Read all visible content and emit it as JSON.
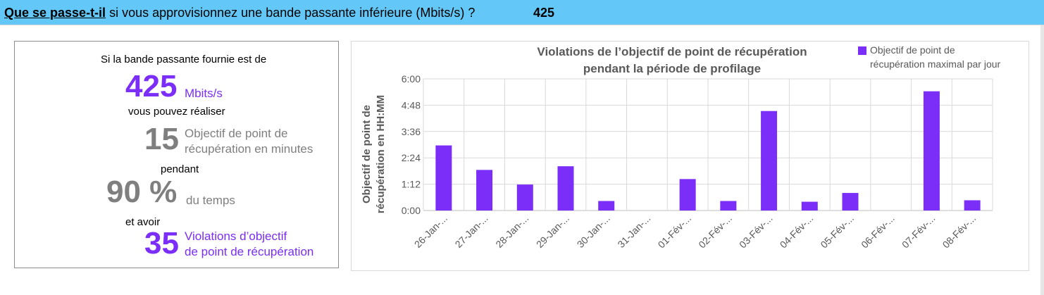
{
  "header": {
    "question_bold": "Que se passe-t-il",
    "question_rest": " si vous approvisionnez une bande passante inférieure (Mbits/s) ?",
    "value": "425"
  },
  "summary": {
    "line1": "Si la bande passante fournie est de",
    "bandwidth": "425",
    "bandwidth_unit": "Mbits/s",
    "line2": "vous pouvez réaliser",
    "rpo_value": "15",
    "rpo_label_1": "Objectif de point de",
    "rpo_label_2": "récupération en minutes",
    "line3": "pendant",
    "percent_value": "90 %",
    "percent_label": "du temps",
    "line4": "et avoir",
    "violations_value": "35",
    "violations_label_1": "Violations d’objectif",
    "violations_label_2": "de point de récupération"
  },
  "chart_data": {
    "type": "bar",
    "title": "Violations de l’objectif de point de récupération pendant la période de profilage",
    "title_lines": [
      "Violations de l’objectif de point de récupération",
      "pendant la période de profilage"
    ],
    "ylabel": "Objectif de point de récupération en HH:MM",
    "ylabel_lines": [
      "Objectif de point de",
      "récupération en HH:MM"
    ],
    "xlabel": "",
    "legend": {
      "position": "top-right",
      "label": "Objectif de point de récupération maximal par jour",
      "label_lines": [
        "Objectif de point de",
        "récupération maximal par jour"
      ]
    },
    "ylim_minutes": [
      0,
      360
    ],
    "y_ticks": [
      {
        "label": "0:00",
        "minutes": 0
      },
      {
        "label": "1:12",
        "minutes": 72
      },
      {
        "label": "2:24",
        "minutes": 144
      },
      {
        "label": "3:36",
        "minutes": 216
      },
      {
        "label": "4:48",
        "minutes": 288
      },
      {
        "label": "6:00",
        "minutes": 360
      }
    ],
    "grid": true,
    "categories": [
      "26-Jan-...",
      "27-Jan-...",
      "28-Jan-...",
      "29-Jan-...",
      "30-Jan-...",
      "31-Jan-...",
      "01-Fév-...",
      "02-Fév-...",
      "03-Fév-...",
      "04-Fév-...",
      "05-Fév-...",
      "06-Fév-...",
      "07-Fév-...",
      "08-Fév-..."
    ],
    "series": [
      {
        "name": "Objectif de point de récupération maximal par jour",
        "values_minutes": [
          178,
          111,
          71,
          121,
          26,
          0,
          86,
          26,
          272,
          24,
          48,
          0,
          326,
          28
        ]
      }
    ],
    "bar_color": "#7a2ef7"
  }
}
